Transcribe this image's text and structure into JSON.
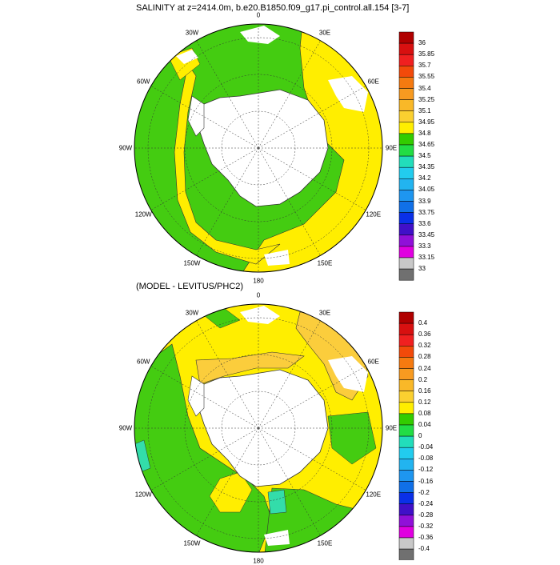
{
  "top_panel": {
    "title": "SALINITY at z=2414.0m, b.e20.B1850.f09_g17.pi_control.all.154 [3-7]",
    "lon_labels": [
      "0",
      "30E",
      "60E",
      "90E",
      "120E",
      "150E",
      "180",
      "150W",
      "120W",
      "90W",
      "60W",
      "30W"
    ],
    "colorbar_labels": [
      "36",
      "35.85",
      "35.7",
      "35.55",
      "35.4",
      "35.25",
      "35.1",
      "34.95",
      "34.8",
      "34.65",
      "34.5",
      "34.35",
      "34.2",
      "34.05",
      "33.9",
      "33.75",
      "33.6",
      "33.45",
      "33.3",
      "33.15",
      "33"
    ]
  },
  "bottom_panel": {
    "title": "(MODEL - LEVITUS/PHC2)",
    "lon_labels": [
      "0",
      "30E",
      "60E",
      "90E",
      "120E",
      "150E",
      "180",
      "150W",
      "120W",
      "90W",
      "60W",
      "30W"
    ],
    "colorbar_labels": [
      "0.4",
      "0.36",
      "0.32",
      "0.28",
      "0.24",
      "0.2",
      "0.16",
      "0.12",
      "0.08",
      "0.04",
      "0",
      "-0.04",
      "-0.08",
      "-0.12",
      "-0.16",
      "-0.2",
      "-0.24",
      "-0.28",
      "-0.32",
      "-0.36",
      "-0.4"
    ]
  },
  "colors": {
    "colorbar": [
      "#b00000",
      "#d81010",
      "#f02020",
      "#f24a0a",
      "#f57a10",
      "#f79a20",
      "#f9b828",
      "#fbd030",
      "#ffee00",
      "#33cc00",
      "#22dd44",
      "#22ddbb",
      "#22ccee",
      "#22b4f0",
      "#1e96f0",
      "#1070e8",
      "#0a30e8",
      "#4010c8",
      "#9010d8",
      "#e000e0",
      "#c8c8c8",
      "#707070"
    ],
    "land": "#ffffff",
    "main_green": "#44cc11",
    "main_yellow": "#ffee00",
    "diff_orange": "#fbcd3c",
    "diff_cyan": "#33ddaa"
  }
}
